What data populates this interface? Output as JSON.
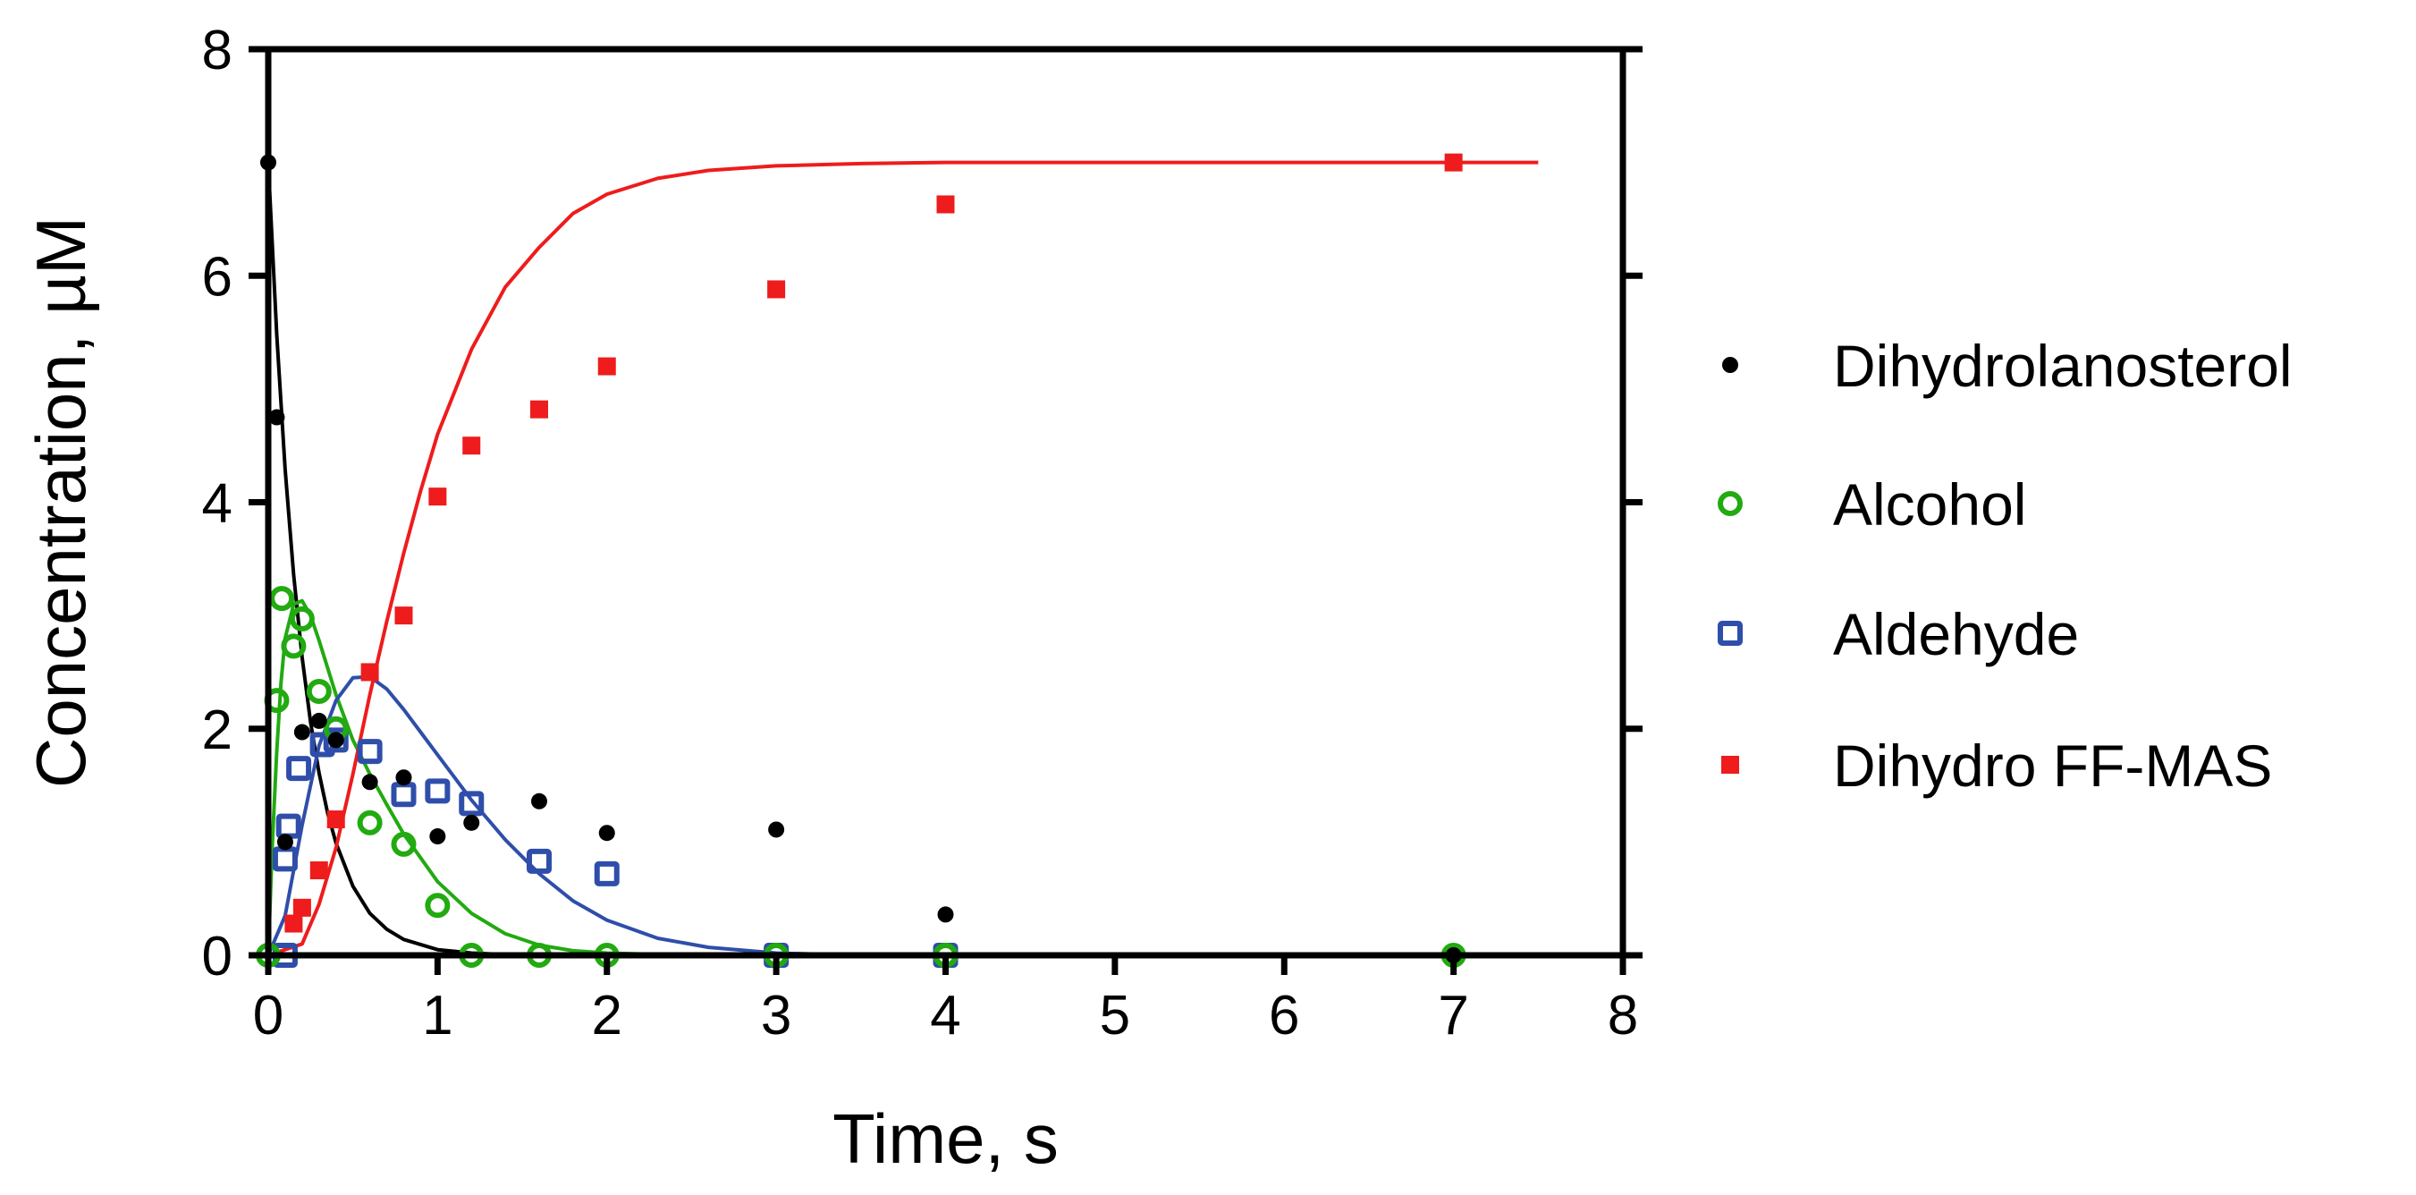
{
  "chart_data": {
    "type": "scatter",
    "title": "",
    "xlabel": "Time, s",
    "ylabel": "Concentration,  µM",
    "xlim": [
      0,
      8
    ],
    "ylim": [
      0,
      8
    ],
    "xticks": [
      0,
      1,
      2,
      3,
      4,
      5,
      6,
      7,
      8
    ],
    "yticks": [
      0,
      2,
      4,
      6,
      8
    ],
    "grid": false,
    "legend_position": "right",
    "series": [
      {
        "name": "Dihydrolanosterol",
        "color": "#000000",
        "marker": "filled-circle",
        "points": [
          [
            0,
            7.0
          ],
          [
            0.05,
            4.75
          ],
          [
            0.1,
            1.0
          ],
          [
            0.2,
            1.97
          ],
          [
            0.3,
            2.07
          ],
          [
            0.4,
            1.9
          ],
          [
            0.6,
            1.53
          ],
          [
            0.8,
            1.57
          ],
          [
            1.0,
            1.05
          ],
          [
            1.2,
            1.17
          ],
          [
            1.6,
            1.36
          ],
          [
            2.0,
            1.08
          ],
          [
            3.0,
            1.11
          ],
          [
            4.0,
            0.36
          ],
          [
            7.0,
            0.0
          ]
        ],
        "fit": [
          [
            0,
            7.0
          ],
          [
            0.05,
            5.48
          ],
          [
            0.1,
            4.29
          ],
          [
            0.15,
            3.36
          ],
          [
            0.2,
            2.63
          ],
          [
            0.25,
            2.06
          ],
          [
            0.3,
            1.61
          ],
          [
            0.35,
            1.26
          ],
          [
            0.4,
            0.99
          ],
          [
            0.5,
            0.61
          ],
          [
            0.6,
            0.37
          ],
          [
            0.7,
            0.23
          ],
          [
            0.8,
            0.14
          ],
          [
            1.0,
            0.05
          ],
          [
            1.2,
            0.02
          ],
          [
            1.5,
            0.0
          ],
          [
            2.0,
            0.0
          ]
        ]
      },
      {
        "name": "Alcohol",
        "color": "#22aa11",
        "marker": "open-circle",
        "points": [
          [
            0,
            0
          ],
          [
            0.05,
            2.25
          ],
          [
            0.08,
            3.15
          ],
          [
            0.15,
            2.73
          ],
          [
            0.2,
            2.97
          ],
          [
            0.3,
            2.33
          ],
          [
            0.4,
            2.0
          ],
          [
            0.6,
            1.17
          ],
          [
            0.8,
            0.98
          ],
          [
            1.0,
            0.44
          ],
          [
            1.2,
            0.0
          ],
          [
            1.6,
            0.0
          ],
          [
            2.0,
            0.0
          ],
          [
            3.0,
            0.0
          ],
          [
            4.0,
            0.0
          ],
          [
            7.0,
            0.0
          ]
        ],
        "fit": [
          [
            0,
            0
          ],
          [
            0.025,
            1.0
          ],
          [
            0.05,
            1.8
          ],
          [
            0.075,
            2.4
          ],
          [
            0.1,
            2.8
          ],
          [
            0.15,
            3.1
          ],
          [
            0.2,
            3.13
          ],
          [
            0.25,
            3.0
          ],
          [
            0.3,
            2.78
          ],
          [
            0.4,
            2.3
          ],
          [
            0.5,
            1.9
          ],
          [
            0.6,
            1.6
          ],
          [
            0.7,
            1.33
          ],
          [
            0.8,
            1.07
          ],
          [
            1.0,
            0.65
          ],
          [
            1.2,
            0.37
          ],
          [
            1.4,
            0.19
          ],
          [
            1.6,
            0.09
          ],
          [
            1.8,
            0.04
          ],
          [
            2.0,
            0.02
          ],
          [
            2.5,
            0.0
          ],
          [
            3.0,
            0.0
          ]
        ]
      },
      {
        "name": "Aldehyde",
        "color": "#2f4eaa",
        "marker": "open-square",
        "points": [
          [
            0.1,
            0.85
          ],
          [
            0.12,
            1.14
          ],
          [
            0.18,
            1.65
          ],
          [
            0.32,
            1.86
          ],
          [
            0.4,
            1.9
          ],
          [
            0.6,
            1.8
          ],
          [
            0.8,
            1.42
          ],
          [
            1.0,
            1.45
          ],
          [
            1.2,
            1.34
          ],
          [
            1.6,
            0.83
          ],
          [
            2.0,
            0.72
          ],
          [
            0.1,
            0.0
          ],
          [
            3.0,
            0.0
          ],
          [
            4.0,
            0.0
          ]
        ],
        "fit": [
          [
            0,
            0
          ],
          [
            0.1,
            0.35
          ],
          [
            0.2,
            1.15
          ],
          [
            0.3,
            1.85
          ],
          [
            0.4,
            2.25
          ],
          [
            0.5,
            2.45
          ],
          [
            0.6,
            2.46
          ],
          [
            0.7,
            2.35
          ],
          [
            0.8,
            2.17
          ],
          [
            0.9,
            1.97
          ],
          [
            1.0,
            1.77
          ],
          [
            1.2,
            1.37
          ],
          [
            1.4,
            1.02
          ],
          [
            1.6,
            0.72
          ],
          [
            1.8,
            0.48
          ],
          [
            2.0,
            0.31
          ],
          [
            2.3,
            0.15
          ],
          [
            2.6,
            0.07
          ],
          [
            3.0,
            0.02
          ],
          [
            3.5,
            0.0
          ],
          [
            4.0,
            0.0
          ]
        ]
      },
      {
        "name": "Dihydro FF-MAS",
        "color": "#ee1c1c",
        "marker": "filled-square",
        "points": [
          [
            0.15,
            0.28
          ],
          [
            0.2,
            0.42
          ],
          [
            0.3,
            0.75
          ],
          [
            0.4,
            1.2
          ],
          [
            0.6,
            2.5
          ],
          [
            0.8,
            3.0
          ],
          [
            1.0,
            4.05
          ],
          [
            1.2,
            4.5
          ],
          [
            1.6,
            4.82
          ],
          [
            2.0,
            5.2
          ],
          [
            3.0,
            5.88
          ],
          [
            4.0,
            6.63
          ],
          [
            7.0,
            7.0
          ]
        ],
        "fit": [
          [
            0,
            0
          ],
          [
            0.2,
            0.1
          ],
          [
            0.3,
            0.45
          ],
          [
            0.4,
            0.95
          ],
          [
            0.5,
            1.6
          ],
          [
            0.6,
            2.3
          ],
          [
            0.7,
            2.95
          ],
          [
            0.8,
            3.55
          ],
          [
            0.9,
            4.1
          ],
          [
            1.0,
            4.6
          ],
          [
            1.2,
            5.35
          ],
          [
            1.4,
            5.9
          ],
          [
            1.6,
            6.25
          ],
          [
            1.8,
            6.55
          ],
          [
            2.0,
            6.72
          ],
          [
            2.3,
            6.86
          ],
          [
            2.6,
            6.93
          ],
          [
            3.0,
            6.97
          ],
          [
            3.5,
            6.99
          ],
          [
            4.0,
            7.0
          ],
          [
            5.0,
            7.0
          ],
          [
            6.0,
            7.0
          ],
          [
            7.5,
            7.0
          ]
        ]
      }
    ]
  }
}
